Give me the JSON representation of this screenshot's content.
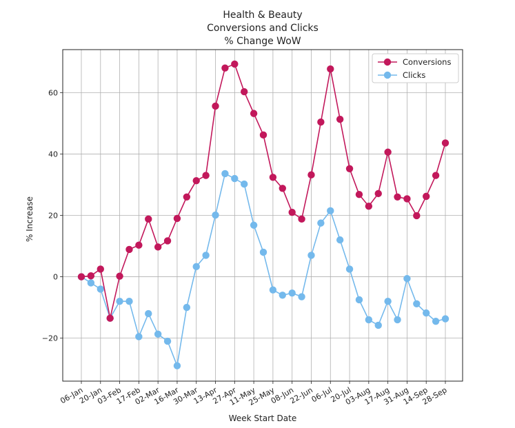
{
  "chart_data": {
    "type": "line",
    "title": [
      "Health & Beauty",
      "Conversions and Clicks",
      "% Change WoW"
    ],
    "xlabel": "Week Start Date",
    "ylabel": "% Increase",
    "ylim": [
      -34,
      74
    ],
    "yticks": [
      -20,
      0,
      20,
      40,
      60
    ],
    "xtick_labels": [
      "06-Jan",
      "20-Jan",
      "03-Feb",
      "17-Feb",
      "02-Mar",
      "16-Mar",
      "30-Mar",
      "13-Apr",
      "27-Apr",
      "11-May",
      "25-May",
      "08-Jun",
      "22-Jun",
      "06-Jul",
      "20-Jul",
      "03-Aug",
      "17-Aug",
      "31-Aug",
      "14-Sep",
      "28-Sep"
    ],
    "x": [
      "06-Jan",
      "13-Jan",
      "20-Jan",
      "27-Jan",
      "03-Feb",
      "10-Feb",
      "17-Feb",
      "24-Feb",
      "02-Mar",
      "09-Mar",
      "16-Mar",
      "23-Mar",
      "30-Mar",
      "06-Apr",
      "13-Apr",
      "20-Apr",
      "27-Apr",
      "04-May",
      "11-May",
      "18-May",
      "25-May",
      "01-Jun",
      "08-Jun",
      "15-Jun",
      "22-Jun",
      "29-Jun",
      "06-Jul",
      "13-Jul",
      "20-Jul",
      "27-Jul",
      "03-Aug",
      "10-Aug",
      "17-Aug",
      "24-Aug",
      "31-Aug",
      "07-Sep",
      "14-Sep",
      "21-Sep",
      "28-Sep"
    ],
    "grid": true,
    "legend_position": "top-right",
    "series": [
      {
        "name": "Conversions",
        "color": "#c2185b",
        "values": [
          0,
          0.3,
          2.5,
          -13.5,
          0.2,
          8.9,
          10.3,
          18.8,
          9.7,
          11.7,
          19.0,
          26.0,
          31.3,
          33.0,
          55.6,
          68.0,
          69.3,
          60.3,
          53.2,
          46.2,
          32.4,
          28.8,
          21.0,
          18.8,
          33.2,
          50.4,
          67.7,
          51.3,
          35.2,
          26.8,
          23.0,
          27.1,
          40.6,
          26.0,
          25.4,
          19.9,
          26.2,
          33.0,
          43.6
        ]
      },
      {
        "name": "Clicks",
        "color": "#74b9ec",
        "values": [
          0,
          -2.0,
          -4.0,
          -13.5,
          -8.0,
          -8.0,
          -19.5,
          -12.0,
          -18.7,
          -21.0,
          -29.0,
          -10.0,
          3.3,
          7.0,
          20.1,
          33.6,
          32.0,
          30.2,
          16.8,
          8.0,
          -4.3,
          -6.0,
          -5.3,
          -6.5,
          7.0,
          17.5,
          21.5,
          12.0,
          2.5,
          -7.5,
          -14.0,
          -15.8,
          -8.0,
          -14.0,
          -0.6,
          -8.8,
          -11.8,
          -14.5,
          -13.7
        ]
      }
    ]
  }
}
